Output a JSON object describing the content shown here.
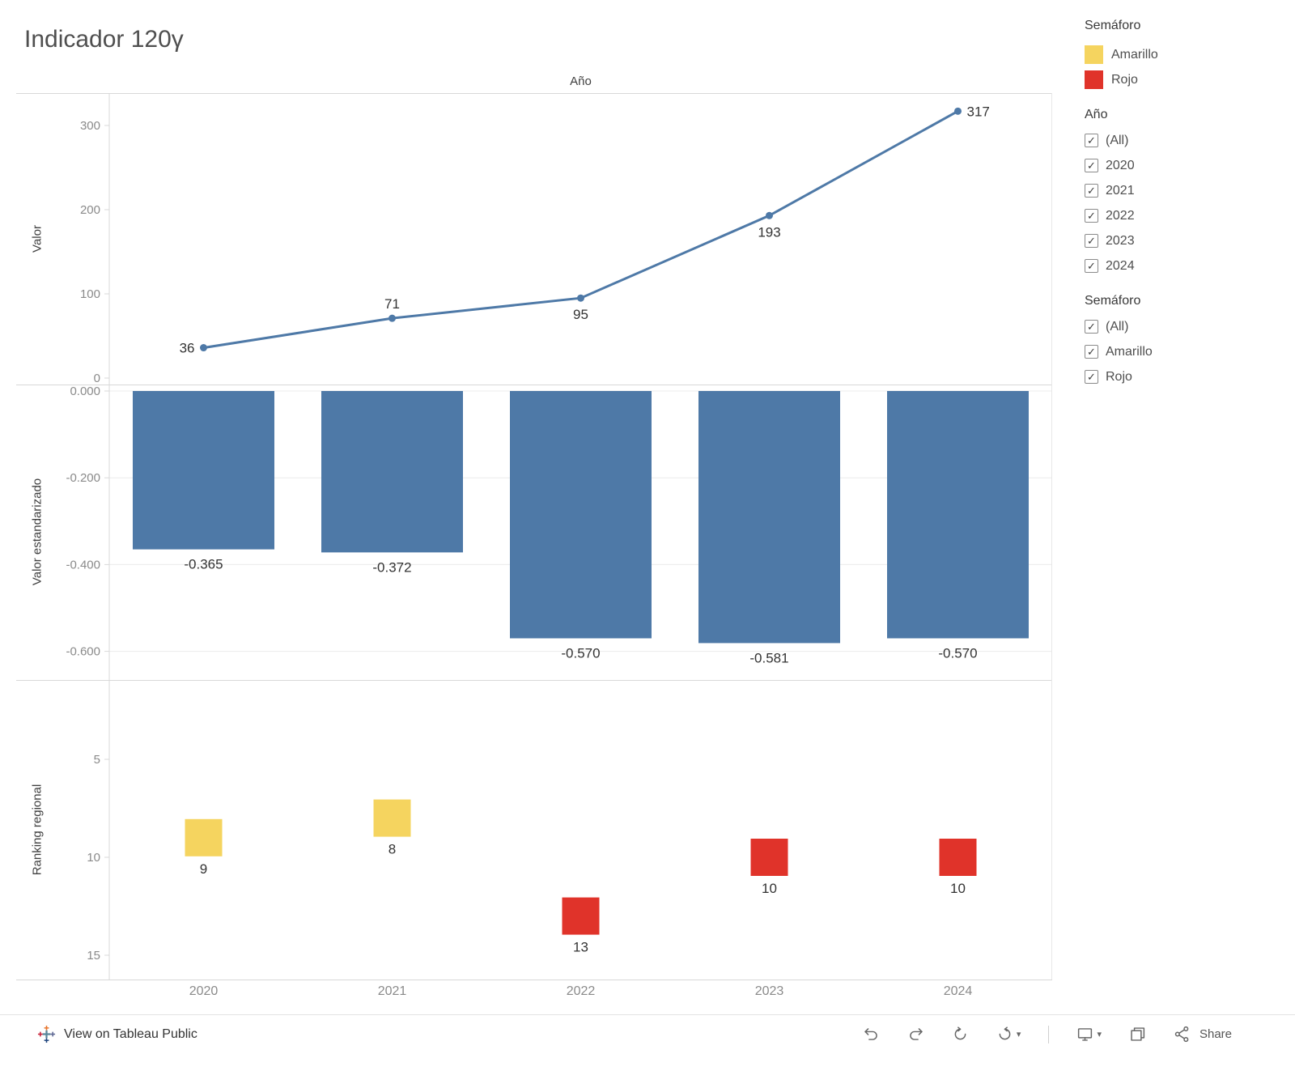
{
  "title": "Indicador 120γ",
  "x_axis": {
    "title": "Año",
    "categories": [
      "2020",
      "2021",
      "2022",
      "2023",
      "2024"
    ]
  },
  "legend": {
    "title": "Semáforo",
    "items": [
      {
        "label": "Amarillo",
        "color": "#F5D45F"
      },
      {
        "label": "Rojo",
        "color": "#E0332A"
      }
    ]
  },
  "filters": [
    {
      "title": "Año",
      "options": [
        "(All)",
        "2020",
        "2021",
        "2022",
        "2023",
        "2024"
      ],
      "checked": [
        true,
        true,
        true,
        true,
        true,
        true
      ]
    },
    {
      "title": "Semáforo",
      "options": [
        "(All)",
        "Amarillo",
        "Rojo"
      ],
      "checked": [
        true,
        true,
        true
      ]
    }
  ],
  "toolbar": {
    "view_label": "View on Tableau Public",
    "share_label": "Share"
  },
  "chart_data": [
    {
      "type": "line",
      "title": "Año",
      "ylabel": "Valor",
      "x": [
        "2020",
        "2021",
        "2022",
        "2023",
        "2024"
      ],
      "values": [
        36,
        71,
        95,
        193,
        317
      ],
      "yticks": [
        0,
        100,
        200,
        300
      ],
      "ylim": [
        0,
        340
      ],
      "color": "#4E79A7",
      "label_positions": [
        "left",
        "above",
        "below",
        "below",
        "right"
      ],
      "grid": false
    },
    {
      "type": "bar",
      "ylabel": "Valor estandarizado",
      "x": [
        "2020",
        "2021",
        "2022",
        "2023",
        "2024"
      ],
      "values": [
        -0.365,
        -0.372,
        -0.57,
        -0.581,
        -0.57
      ],
      "value_labels": [
        "-0.365",
        "-0.372",
        "-0.570",
        "-0.581",
        "-0.570"
      ],
      "ytick_labels": [
        "0.000",
        "-0.200",
        "-0.400",
        "-0.600"
      ],
      "ylim": [
        0,
        -0.66
      ],
      "color": "#4E79A7",
      "grid": true
    },
    {
      "type": "scatter",
      "marker": "square",
      "ylabel": "Ranking regional",
      "x": [
        "2020",
        "2021",
        "2022",
        "2023",
        "2024"
      ],
      "values": [
        9,
        8,
        13,
        10,
        10
      ],
      "point_colors": [
        "#F5D45F",
        "#F5D45F",
        "#E0332A",
        "#E0332A",
        "#E0332A"
      ],
      "semaforo": [
        "Amarillo",
        "Amarillo",
        "Rojo",
        "Rojo",
        "Rojo"
      ],
      "yticks": [
        5,
        10,
        15
      ],
      "ylim": [
        16.5,
        1
      ],
      "y_inverted": true,
      "grid": false
    }
  ]
}
